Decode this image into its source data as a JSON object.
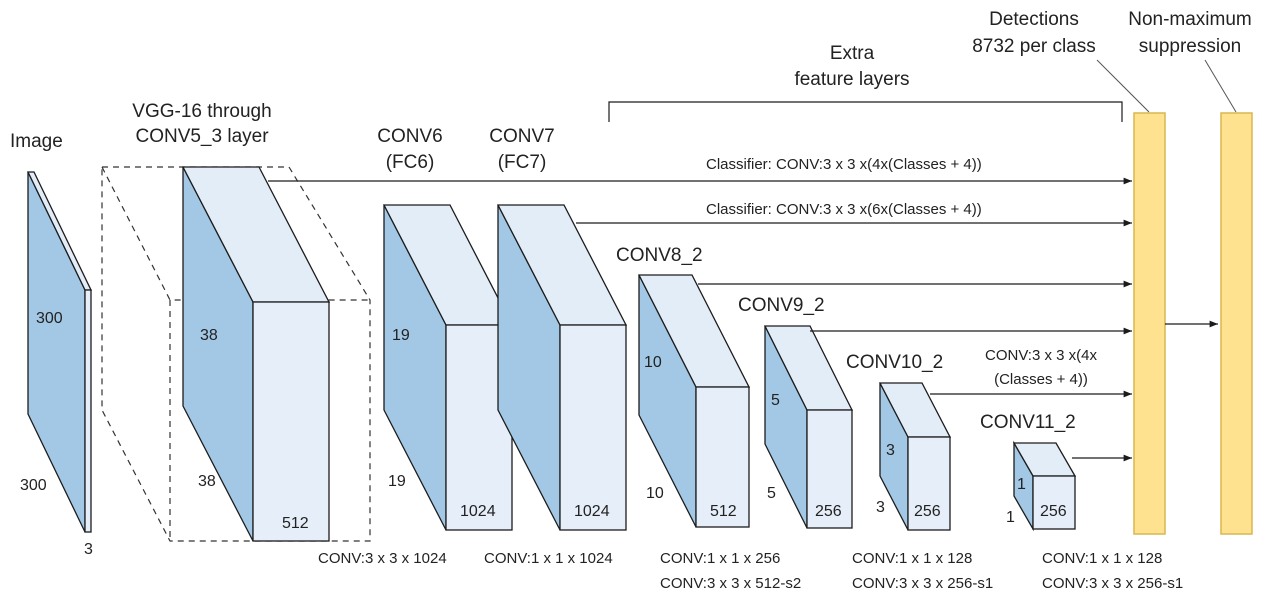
{
  "colors": {
    "front": "#a3c8e6",
    "top": "#e2edf8",
    "side": "#e6eff9",
    "stroke": "#1c1c1c",
    "detector": "#ffe28f",
    "detector_stroke": "#d9b64f",
    "text": "#222222"
  },
  "image_block": {
    "title": "Image",
    "height_label": "300",
    "width_label": "300",
    "depth_label": "3"
  },
  "vgg_block": {
    "title_line1": "VGG-16 through",
    "title_line2": "CONV5_3 layer",
    "height_label": "38",
    "width_label": "38",
    "depth_label": "512"
  },
  "layers": [
    {
      "title_line1": "CONV6",
      "title_line2": "(FC6)",
      "height_label": "19",
      "width_label": "19",
      "depth_label": "1024",
      "op_line1": "CONV:3 x 3 x 1024",
      "op_line2": ""
    },
    {
      "title_line1": "CONV7",
      "title_line2": "(FC7)",
      "height_label": "",
      "width_label": "",
      "depth_label": "1024",
      "op_line1": "CONV:1 x 1 x 1024",
      "op_line2": ""
    },
    {
      "title_line1": "CONV8_2",
      "title_line2": "",
      "height_label": "10",
      "width_label": "10",
      "depth_label": "512",
      "op_line1": "CONV:1 x 1 x 256",
      "op_line2": "CONV:3 x 3 x 512-s2"
    },
    {
      "title_line1": "CONV9_2",
      "title_line2": "",
      "height_label": "5",
      "width_label": "5",
      "depth_label": "256",
      "op_line1": "",
      "op_line2": ""
    },
    {
      "title_line1": "CONV10_2",
      "title_line2": "",
      "height_label": "3",
      "width_label": "3",
      "depth_label": "256",
      "op_line1": "CONV:1 x 1 x 128",
      "op_line2": "CONV:3 x 3 x 256-s1"
    },
    {
      "title_line1": "CONV11_2",
      "title_line2": "",
      "height_label": "1",
      "width_label": "1",
      "depth_label": "256",
      "op_line1": "CONV:1 x 1 x 128",
      "op_line2": "CONV:3 x 3 x 256-s1"
    }
  ],
  "extra_label_line1": "Extra",
  "extra_label_line2": "feature layers",
  "classifier_1": "Classifier: CONV:3 x 3 x(4x(Classes + 4))",
  "classifier_2": "Classifier: CONV:3 x 3 x(6x(Classes + 4))",
  "classifier_3_line1": "CONV:3 x 3 x(4x",
  "classifier_3_line2": "(Classes + 4))",
  "detections_line1": "Detections",
  "detections_line2": "8732 per class",
  "nms_line1": "Non-maximum",
  "nms_line2": "suppression"
}
